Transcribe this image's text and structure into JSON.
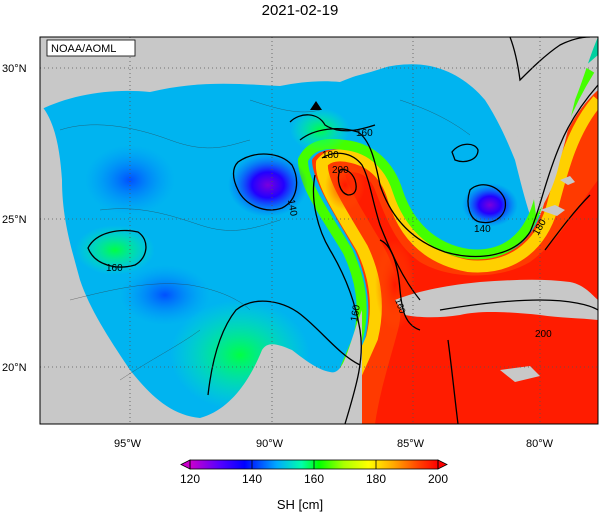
{
  "title": "2021-02-19",
  "credit": "NOAA/AOML",
  "lat_labels": [
    "30°N",
    "25°N",
    "20°N"
  ],
  "lon_labels": [
    "95°W",
    "90°W",
    "85°W",
    "80°W"
  ],
  "contour_labels": [
    "160",
    "140",
    "160",
    "180",
    "200",
    "140",
    "180",
    "160",
    "200",
    "160"
  ],
  "colorbar": {
    "title": "SH [cm]",
    "ticks": [
      "120",
      "140",
      "160",
      "180",
      "200"
    ],
    "stops": [
      "#cc00cc",
      "#5500ff",
      "#0000ff",
      "#00aaff",
      "#00ffaa",
      "#00ff00",
      "#aaff00",
      "#ffff00",
      "#ffaa00",
      "#ff4400",
      "#ff0000"
    ]
  },
  "colors": {
    "land": "#c8c8c8",
    "frame": "#000000",
    "grid": "#555555"
  },
  "markers": [
    {
      "name": "triangle",
      "lon": -88.5,
      "lat": 28.6
    }
  ]
}
